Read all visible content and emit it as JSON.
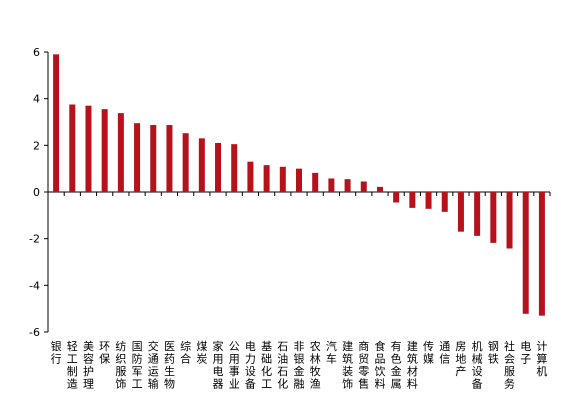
{
  "chart_data": {
    "type": "bar",
    "categories": [
      "银行",
      "轻工制造",
      "美容护理",
      "环保",
      "纺织服饰",
      "国防军工",
      "交通运输",
      "医药生物",
      "综合",
      "煤炭",
      "家用电器",
      "公用事业",
      "电力设备",
      "基础化工",
      "石油石化",
      "非银金融",
      "农林牧渔",
      "汽车",
      "建筑装饰",
      "商贸零售",
      "食品饮料",
      "有色金属",
      "建筑材料",
      "传媒",
      "通信",
      "房地产",
      "机械设备",
      "钢铁",
      "社会服务",
      "电子",
      "计算机"
    ],
    "values": [
      5.9,
      3.75,
      3.7,
      3.55,
      3.38,
      2.95,
      2.87,
      2.87,
      2.52,
      2.3,
      2.1,
      2.05,
      1.3,
      1.15,
      1.08,
      1.0,
      0.82,
      0.58,
      0.55,
      0.45,
      0.22,
      -0.45,
      -0.68,
      -0.72,
      -0.85,
      -1.7,
      -1.88,
      -2.18,
      -2.42,
      -5.22,
      -5.3
    ],
    "ylim": [
      -6,
      6
    ],
    "yticks": [
      "6",
      "4",
      "2",
      "0",
      "-2",
      "-4",
      "-6"
    ],
    "grid": false,
    "bar_color": "#B5121B"
  }
}
